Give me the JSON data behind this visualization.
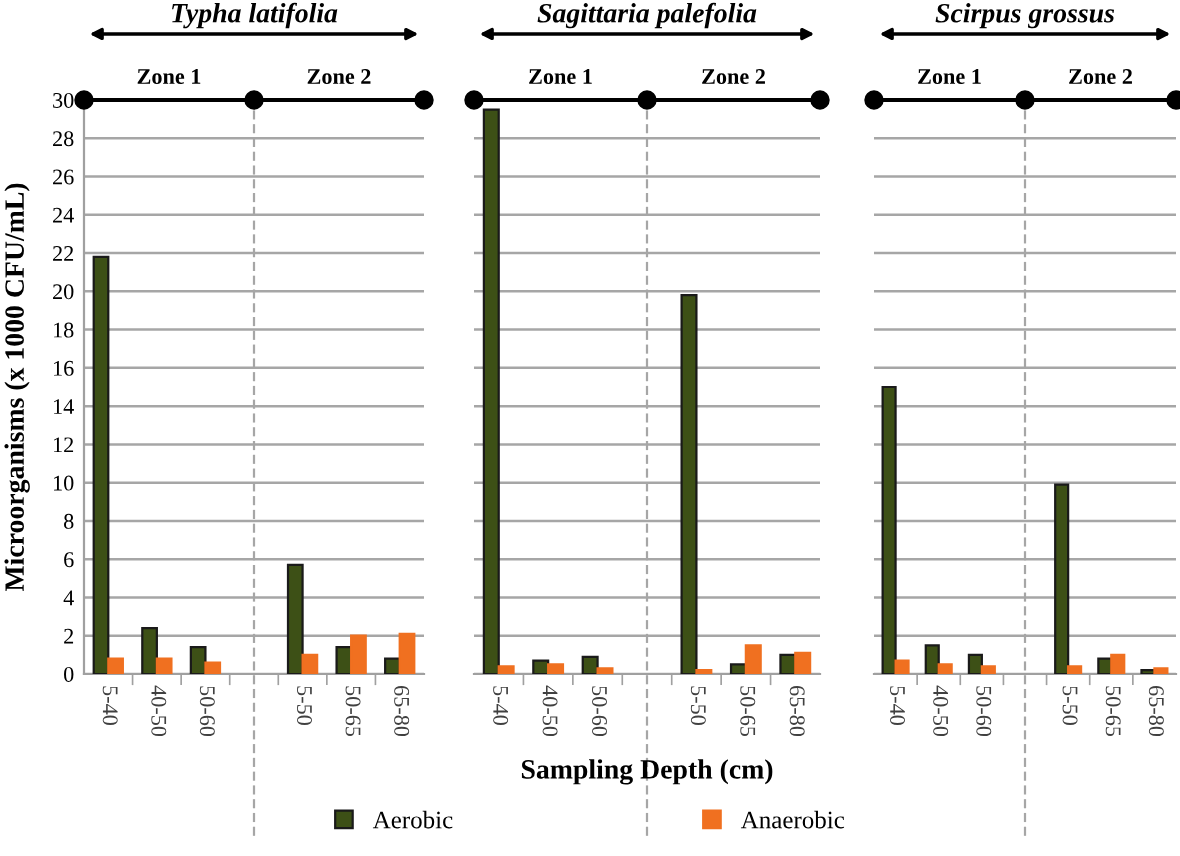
{
  "chart_data": [
    {
      "type": "bar",
      "title": "Typha latifolia",
      "ylabel": "Microorganisms (x 1000 CFU/mL)",
      "annotations": [
        "Zone 1",
        "Zone 2"
      ],
      "categories": [
        "5-40",
        "40-50",
        "50-60",
        null,
        "5-50",
        "50-65",
        "65-80"
      ],
      "series": [
        {
          "name": "Aerobic",
          "color": "#3d5016",
          "values": [
            21.8,
            2.4,
            1.4,
            null,
            5.7,
            1.4,
            0.8
          ]
        },
        {
          "name": "Anaerobic",
          "color": "#f07020",
          "values": [
            0.8,
            0.8,
            0.6,
            null,
            1.0,
            2.0,
            2.1
          ]
        }
      ],
      "ylim": [
        0,
        30
      ],
      "yticks": [
        0,
        2,
        4,
        6,
        8,
        10,
        12,
        14,
        16,
        18,
        20,
        22,
        24,
        26,
        28,
        30
      ],
      "grid": "y",
      "legend": "bottom"
    },
    {
      "type": "bar",
      "title": "Sagittaria palefolia",
      "xlabel": "Sampling Depth (cm)",
      "annotations": [
        "Zone 1",
        "Zone 2"
      ],
      "categories": [
        "5-40",
        "40-50",
        "50-60",
        null,
        "5-50",
        "50-65",
        "65-80"
      ],
      "series": [
        {
          "color": "#3d5016",
          "values": [
            29.5,
            0.7,
            0.9,
            null,
            19.8,
            0.5,
            1.0
          ]
        },
        {
          "color": "#f07020",
          "values": [
            0.4,
            0.5,
            0.3,
            null,
            0.2,
            1.5,
            1.1
          ]
        }
      ],
      "ylim": [
        0,
        30
      ],
      "yticks": [
        0,
        2,
        4,
        6,
        8,
        10,
        12,
        14,
        16,
        18,
        20,
        22,
        24,
        26,
        28,
        30
      ],
      "grid": "y",
      "tick_labels": "x"
    },
    {
      "type": "bar",
      "title": "Scirpus grossus",
      "annotations": [
        "Zone 1",
        "Zone 2"
      ],
      "categories": [
        "5-40",
        "40-50",
        "50-60",
        null,
        "5-50",
        "50-65",
        "65-80"
      ],
      "series": [
        {
          "color": "#3d5016",
          "values": [
            15.0,
            1.5,
            1.0,
            null,
            9.9,
            0.8,
            0.2
          ]
        },
        {
          "color": "#f07020",
          "values": [
            0.7,
            0.5,
            0.4,
            null,
            0.4,
            1.0,
            0.3
          ]
        }
      ],
      "ylim": [
        0,
        30
      ],
      "yticks": [
        0,
        2,
        4,
        6,
        8,
        10,
        12,
        14,
        16,
        18,
        20,
        22,
        24,
        26,
        28,
        30
      ],
      "grid": "y",
      "tick_labels": "x"
    }
  ]
}
